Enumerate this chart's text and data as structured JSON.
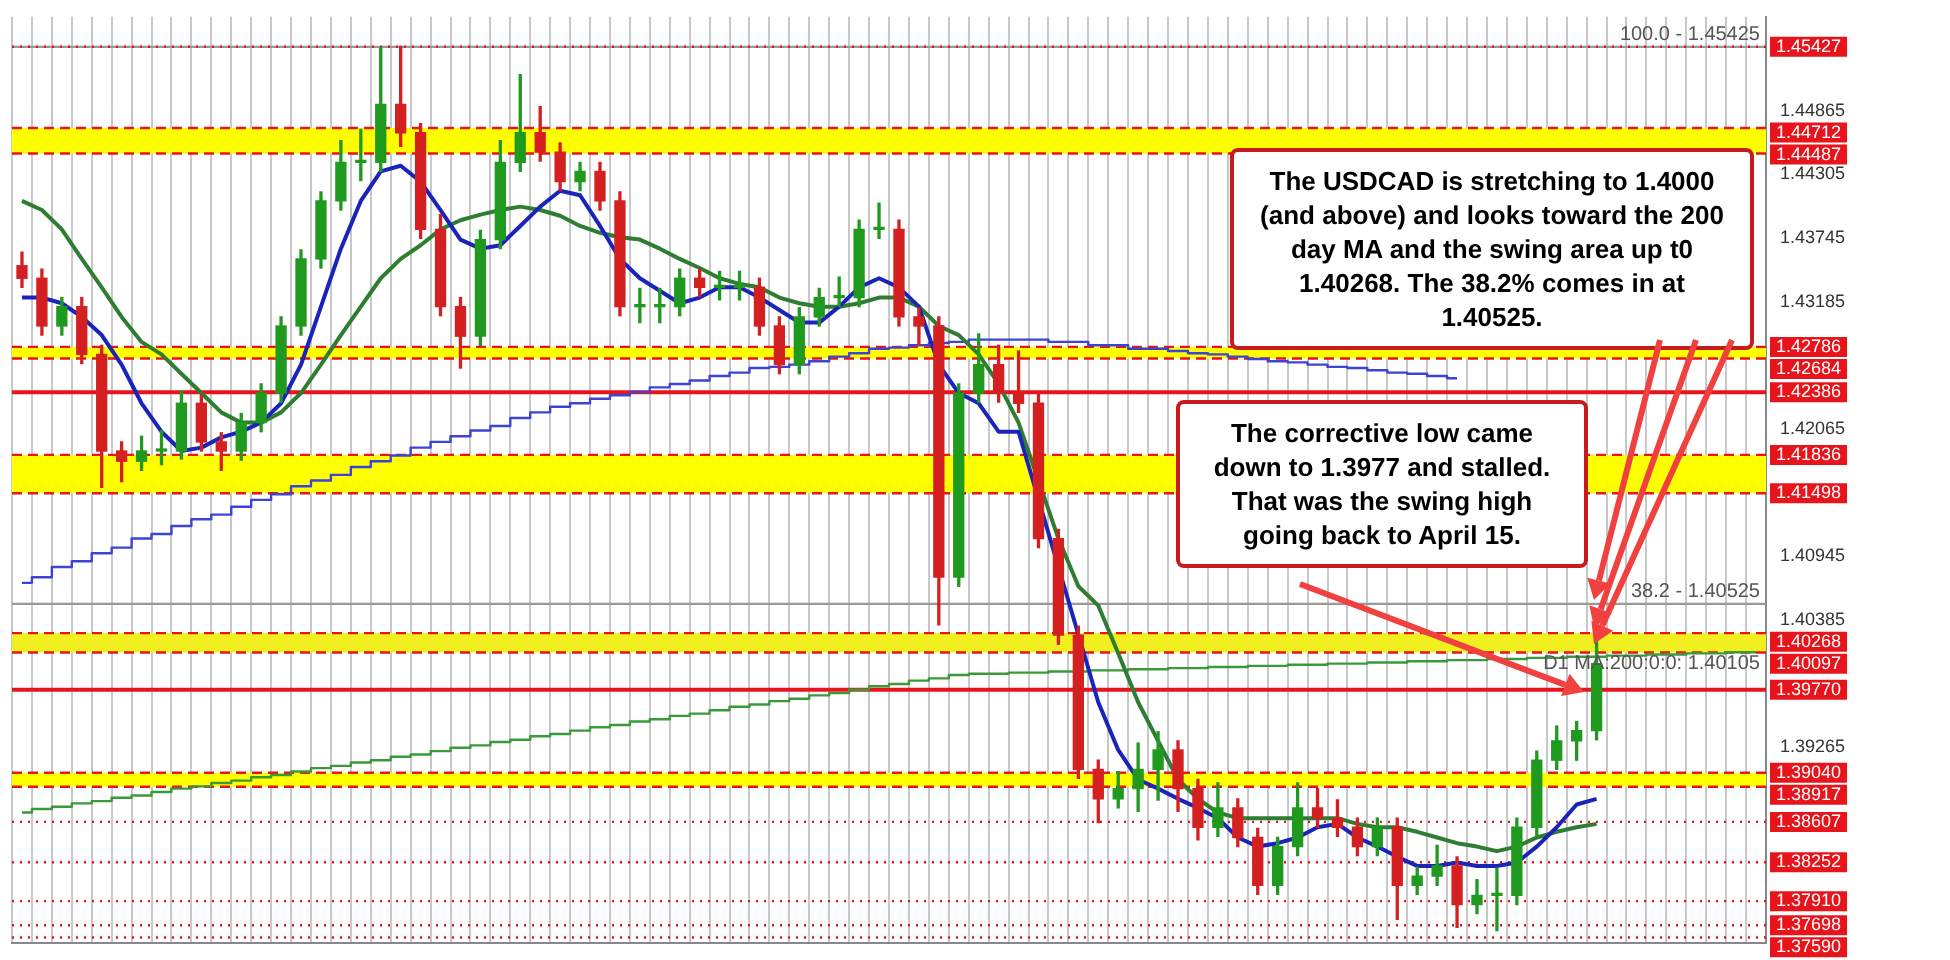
{
  "chart_data": {
    "type": "candlestick",
    "categories": [
      null,
      null,
      null,
      null,
      null,
      null,
      null,
      null,
      null,
      null,
      null,
      null,
      null,
      null,
      null,
      null,
      null,
      null,
      null,
      null,
      null,
      null,
      null,
      null,
      null,
      null,
      null,
      null,
      null,
      null,
      null,
      null,
      null,
      null,
      null,
      null,
      null,
      null,
      null,
      null,
      null,
      null,
      null,
      null,
      null,
      null,
      null,
      null,
      null,
      null,
      null,
      null,
      null,
      null,
      null,
      null,
      null,
      null,
      null,
      null,
      null,
      null,
      null,
      null,
      null,
      null,
      null,
      null,
      null,
      null,
      null,
      null,
      null,
      null,
      null,
      null,
      null,
      null,
      null,
      null,
      null,
      null,
      null,
      null,
      null,
      null,
      null,
      null
    ],
    "ohlc": [
      [
        1.435,
        1.4362,
        1.4331,
        1.4339
      ],
      [
        1.4339,
        1.4347,
        1.4289,
        1.4297
      ],
      [
        1.4297,
        1.4322,
        1.4289,
        1.4314
      ],
      [
        1.4314,
        1.4322,
        1.4264,
        1.4272
      ],
      [
        1.4272,
        1.428,
        1.4155,
        1.4187
      ],
      [
        1.4187,
        1.4195,
        1.416,
        1.4178
      ],
      [
        1.4178,
        1.42,
        1.417,
        1.4187
      ],
      [
        1.4187,
        1.4205,
        1.4175,
        1.4187
      ],
      [
        1.4187,
        1.424,
        1.418,
        1.4229
      ],
      [
        1.4229,
        1.4237,
        1.4187,
        1.4195
      ],
      [
        1.4195,
        1.4203,
        1.417,
        1.4187
      ],
      [
        1.4187,
        1.422,
        1.4179,
        1.4212
      ],
      [
        1.4212,
        1.4246,
        1.4204,
        1.4238
      ],
      [
        1.4238,
        1.4305,
        1.423,
        1.4297
      ],
      [
        1.4297,
        1.4364,
        1.4289,
        1.4356
      ],
      [
        1.4356,
        1.4415,
        1.4348,
        1.4407
      ],
      [
        1.4407,
        1.446,
        1.4399,
        1.4441
      ],
      [
        1.4441,
        1.447,
        1.4425,
        1.4441
      ],
      [
        1.4441,
        1.4542,
        1.4433,
        1.4492
      ],
      [
        1.4492,
        1.4543,
        1.4455,
        1.4467
      ],
      [
        1.4467,
        1.4475,
        1.4374,
        1.4382
      ],
      [
        1.4382,
        1.4395,
        1.4306,
        1.4314
      ],
      [
        1.4314,
        1.4322,
        1.426,
        1.4288
      ],
      [
        1.4288,
        1.4381,
        1.428,
        1.4373
      ],
      [
        1.4373,
        1.446,
        1.4365,
        1.4441
      ],
      [
        1.4441,
        1.4518,
        1.4433,
        1.4467
      ],
      [
        1.4467,
        1.449,
        1.4442,
        1.445
      ],
      [
        1.445,
        1.4458,
        1.4416,
        1.4424
      ],
      [
        1.4424,
        1.4441,
        1.4416,
        1.4433
      ],
      [
        1.4433,
        1.4441,
        1.4399,
        1.4407
      ],
      [
        1.4407,
        1.4415,
        1.4306,
        1.4314
      ],
      [
        1.4314,
        1.433,
        1.43,
        1.4314
      ],
      [
        1.4314,
        1.433,
        1.43,
        1.4314
      ],
      [
        1.4314,
        1.4347,
        1.4306,
        1.4339
      ],
      [
        1.4339,
        1.4347,
        1.4323,
        1.4331
      ],
      [
        1.4331,
        1.4345,
        1.432,
        1.4331
      ],
      [
        1.4331,
        1.4345,
        1.432,
        1.4331
      ],
      [
        1.4331,
        1.4339,
        1.4289,
        1.4297
      ],
      [
        1.4297,
        1.4305,
        1.4255,
        1.4263
      ],
      [
        1.4263,
        1.4313,
        1.4255,
        1.4305
      ],
      [
        1.4305,
        1.433,
        1.4297,
        1.4322
      ],
      [
        1.4322,
        1.434,
        1.4314,
        1.4322
      ],
      [
        1.4322,
        1.439,
        1.4314,
        1.4382
      ],
      [
        1.4382,
        1.4405,
        1.4374,
        1.4382
      ],
      [
        1.4382,
        1.439,
        1.4297,
        1.4305
      ],
      [
        1.4305,
        1.4313,
        1.428,
        1.4297
      ],
      [
        1.4297,
        1.4305,
        1.4034,
        1.4076
      ],
      [
        1.4076,
        1.4246,
        1.4068,
        1.4238
      ],
      [
        1.4238,
        1.429,
        1.423,
        1.4263
      ],
      [
        1.4263,
        1.428,
        1.423,
        1.4238
      ],
      [
        1.4238,
        1.4275,
        1.4221,
        1.4229
      ],
      [
        1.4229,
        1.4237,
        1.4102,
        1.411
      ],
      [
        1.411,
        1.4118,
        1.4017,
        1.4025
      ],
      [
        1.4025,
        1.4033,
        1.3899,
        1.3907
      ],
      [
        1.3907,
        1.3915,
        1.386,
        1.3881
      ],
      [
        1.3881,
        1.3905,
        1.3873,
        1.389
      ],
      [
        1.389,
        1.393,
        1.387,
        1.3907
      ],
      [
        1.3907,
        1.394,
        1.388,
        1.3924
      ],
      [
        1.3924,
        1.3932,
        1.387,
        1.389
      ],
      [
        1.389,
        1.3898,
        1.3845,
        1.3856
      ],
      [
        1.3856,
        1.3895,
        1.3848,
        1.3873
      ],
      [
        1.3873,
        1.3881,
        1.3839,
        1.3847
      ],
      [
        1.3847,
        1.3855,
        1.3797,
        1.3805
      ],
      [
        1.3805,
        1.3847,
        1.3797,
        1.3839
      ],
      [
        1.3839,
        1.3895,
        1.3831,
        1.3873
      ],
      [
        1.3873,
        1.389,
        1.3856,
        1.3864
      ],
      [
        1.3864,
        1.388,
        1.3848,
        1.3856
      ],
      [
        1.3856,
        1.3864,
        1.3831,
        1.3839
      ],
      [
        1.3839,
        1.3864,
        1.3831,
        1.3856
      ],
      [
        1.3856,
        1.3864,
        1.3775,
        1.3805
      ],
      [
        1.3805,
        1.3821,
        1.3797,
        1.3813
      ],
      [
        1.3813,
        1.384,
        1.3805,
        1.3822
      ],
      [
        1.3822,
        1.383,
        1.3768,
        1.3788
      ],
      [
        1.3788,
        1.381,
        1.378,
        1.3796
      ],
      [
        1.3796,
        1.382,
        1.3765,
        1.3796
      ],
      [
        1.3796,
        1.3864,
        1.3788,
        1.3856
      ],
      [
        1.3856,
        1.3923,
        1.3848,
        1.3915
      ],
      [
        1.3915,
        1.3945,
        1.3907,
        1.3932
      ],
      [
        1.3932,
        1.3949,
        1.3915,
        1.3941
      ],
      [
        1.3941,
        1.402,
        1.3933,
        1.4
      ],
      null,
      null,
      null,
      null,
      null,
      null,
      null,
      null
    ],
    "series": [
      {
        "type": "line",
        "color": "#1a24b8",
        "values": [
          1.4322,
          1.4322,
          1.4317,
          1.4305,
          1.4289,
          1.4263,
          1.4229,
          1.4204,
          1.4187,
          1.419,
          1.4199,
          1.4204,
          1.4212,
          1.4229,
          1.4263,
          1.4314,
          1.4365,
          1.4407,
          1.4433,
          1.4438,
          1.4424,
          1.4399,
          1.4373,
          1.4365,
          1.4368,
          1.4385,
          1.4402,
          1.4416,
          1.4412,
          1.4385,
          1.4356,
          1.4339,
          1.4328,
          1.4317,
          1.4322,
          1.4331,
          1.4331,
          1.4322,
          1.4311,
          1.43,
          1.43,
          1.4314,
          1.4331,
          1.4339,
          1.4331,
          1.4314,
          1.4263,
          1.4238,
          1.4229,
          1.4204,
          1.4204,
          null,
          null,
          null,
          1.3966,
          1.3924,
          1.3898,
          1.389,
          1.3881,
          1.3873,
          1.3864,
          1.3847,
          1.3839,
          1.3842,
          1.3847,
          1.3856,
          1.3859,
          1.3847,
          1.3839,
          1.383,
          1.3822,
          1.3822,
          1.3825,
          1.3822,
          1.3822,
          1.3825,
          1.3839,
          1.3856,
          1.3876,
          1.3881,
          null,
          null,
          null,
          null,
          null,
          null,
          null,
          null
        ]
      },
      {
        "type": "line",
        "color": "#2e7d32",
        "values": [
          1.4407,
          1.4399,
          1.4382,
          1.4356,
          1.4331,
          1.4305,
          1.4283,
          1.4272,
          1.4255,
          1.4238,
          1.4221,
          1.4212,
          1.4212,
          1.4221,
          1.4238,
          1.4263,
          1.4289,
          1.4314,
          1.4339,
          1.4356,
          1.4368,
          1.4382,
          1.439,
          1.4395,
          1.4399,
          1.4402,
          1.4399,
          1.4394,
          1.4385,
          1.4379,
          1.4375,
          1.4373,
          1.4365,
          1.4356,
          1.4348,
          1.4339,
          1.4334,
          1.4331,
          1.4322,
          1.4317,
          1.4314,
          1.4314,
          1.4317,
          1.4322,
          1.4322,
          1.4314,
          1.4297,
          1.4289,
          1.4272,
          1.4246,
          1.4212,
          null,
          1.411,
          1.4068,
          1.4051,
          1.4009,
          1.3966,
          1.3932,
          1.3898,
          1.3881,
          1.3869,
          1.3864,
          1.3864,
          1.3864,
          1.3864,
          1.3864,
          1.3864,
          1.3859,
          1.3856,
          1.3856,
          1.3852,
          1.3847,
          1.3842,
          1.3839,
          1.3835,
          1.3839,
          1.3847,
          1.3852,
          1.3856,
          1.3859,
          null,
          null,
          null,
          null,
          null,
          null,
          null,
          null
        ]
      },
      {
        "type": "step",
        "color": "#3b44d6",
        "values": [
          1.4071,
          1.4076,
          1.4085,
          1.409,
          1.4097,
          1.4102,
          1.411,
          1.4114,
          1.4121,
          1.4127,
          1.4131,
          1.4138,
          1.4144,
          1.4149,
          1.4156,
          1.4161,
          1.4166,
          1.4173,
          1.4178,
          1.4183,
          1.419,
          1.4195,
          1.42,
          1.4205,
          1.4209,
          1.4216,
          1.4221,
          1.4226,
          1.4229,
          1.4233,
          1.4236,
          1.4239,
          1.4243,
          1.4246,
          1.4249,
          1.4253,
          1.4256,
          1.426,
          1.4261,
          1.4263,
          1.4266,
          1.427,
          1.4273,
          1.4277,
          1.4278,
          1.428,
          1.4282,
          1.4283,
          1.4285,
          1.4285,
          1.4285,
          1.4285,
          1.4283,
          1.4283,
          1.428,
          1.428,
          1.4277,
          1.4277,
          1.4275,
          1.4273,
          1.4272,
          1.427,
          1.4268,
          1.4266,
          1.4265,
          1.4263,
          1.4261,
          1.426,
          1.4258,
          1.4256,
          1.4255,
          1.4253,
          1.4251,
          null,
          null,
          null,
          null,
          null,
          null,
          null,
          null,
          null,
          null,
          null,
          null,
          null,
          null,
          null
        ]
      },
      {
        "type": "step",
        "color": "#3a9a3a",
        "values": [
          1.3869,
          1.3872,
          1.3874,
          1.3877,
          1.3879,
          1.3882,
          1.3884,
          1.3887,
          1.389,
          1.3892,
          1.3895,
          1.3897,
          1.39,
          1.3902,
          1.3905,
          1.3908,
          1.391,
          1.3913,
          1.3915,
          1.3918,
          1.392,
          1.3923,
          1.3926,
          1.3928,
          1.3931,
          1.3933,
          1.3936,
          1.3938,
          1.3941,
          1.3944,
          1.3946,
          1.3949,
          1.3951,
          1.3954,
          1.3956,
          1.3959,
          1.3962,
          1.3964,
          1.3967,
          1.3969,
          1.3972,
          1.3974,
          1.3977,
          1.398,
          1.3982,
          1.3985,
          1.3987,
          1.399,
          1.3991,
          1.3991,
          1.3992,
          1.3992,
          1.3993,
          1.3993,
          1.3994,
          1.3994,
          1.3995,
          1.3995,
          1.3996,
          1.3996,
          1.3997,
          1.3997,
          1.3998,
          1.3998,
          1.3999,
          1.3999,
          1.4,
          1.4,
          1.4001,
          1.4001,
          1.4002,
          1.4002,
          1.4003,
          1.4003,
          1.4004,
          1.4004,
          1.4005,
          1.4005,
          1.4006,
          1.4006,
          1.4007,
          1.4007,
          1.4008,
          1.4008,
          1.4009,
          1.4009,
          1.401,
          1.401
        ]
      }
    ],
    "marker": "none",
    "ylim": [
      1.3754,
      1.4569
    ],
    "yticks": [
      1.44865,
      1.44305,
      1.43745,
      1.43185,
      1.42065,
      1.40945,
      1.40385,
      1.39265
    ],
    "tick_labels": "y",
    "grid": "x",
    "bands": [
      {
        "axis": "y",
        "from": 1.44487,
        "to": 1.44712,
        "color": "#ffff00"
      },
      {
        "axis": "y",
        "from": 1.42684,
        "to": 1.42786,
        "color": "#ffff00"
      },
      {
        "axis": "y",
        "from": 1.41498,
        "to": 1.41836,
        "color": "#ffff00"
      },
      {
        "axis": "y",
        "from": 1.40097,
        "to": 1.40268,
        "color": "#f0f020"
      },
      {
        "axis": "y",
        "from": 1.38917,
        "to": 1.3904,
        "color": "#ffff00"
      }
    ],
    "ref_lines": [
      {
        "axis": "y",
        "value": 1.45425,
        "label": null,
        "color": "#999999",
        "line_style": "solid"
      },
      {
        "axis": "y",
        "value": 1.40525,
        "label": null,
        "color": "#999999",
        "line_style": "solid"
      },
      {
        "axis": "y",
        "value": 1.45427,
        "label": "1.45427",
        "color": "#e8141b",
        "line_style": "dotted"
      },
      {
        "axis": "y",
        "value": 1.44712,
        "label": "1.44712",
        "color": "#e8141b",
        "line_style": "dashed"
      },
      {
        "axis": "y",
        "value": 1.44487,
        "label": "1.44487",
        "color": "#e8141b",
        "line_style": "dashed"
      },
      {
        "axis": "y",
        "value": 1.42786,
        "label": "1.42786",
        "color": "#e8141b",
        "line_style": "dashed"
      },
      {
        "axis": "y",
        "value": 1.42684,
        "label": "1.42684",
        "color": "#e8141b",
        "line_style": "dashed"
      },
      {
        "axis": "y",
        "value": 1.42386,
        "label": "1.42386",
        "color": "#e8141b",
        "line_style": "solid"
      },
      {
        "axis": "y",
        "value": 1.41836,
        "label": "1.41836",
        "color": "#e8141b",
        "line_style": "dashed"
      },
      {
        "axis": "y",
        "value": 1.41498,
        "label": "1.41498",
        "color": "#e8141b",
        "line_style": "dashed"
      },
      {
        "axis": "y",
        "value": 1.40268,
        "label": "1.40268",
        "color": "#e8141b",
        "line_style": "dashed"
      },
      {
        "axis": "y",
        "value": 1.40097,
        "label": "1.40097",
        "color": "#e8141b",
        "line_style": "dashed"
      },
      {
        "axis": "y",
        "value": 1.3977,
        "label": "1.39770",
        "color": "#e8141b",
        "line_style": "solid"
      },
      {
        "axis": "y",
        "value": 1.3904,
        "label": "1.39040",
        "color": "#e8141b",
        "line_style": "dashed"
      },
      {
        "axis": "y",
        "value": 1.38917,
        "label": "1.38917",
        "color": "#e8141b",
        "line_style": "dashed"
      },
      {
        "axis": "y",
        "value": 1.38607,
        "label": "1.38607",
        "color": "#e8141b",
        "line_style": "dotted"
      },
      {
        "axis": "y",
        "value": 1.38252,
        "label": "1.38252",
        "color": "#e8141b",
        "line_style": "dotted"
      },
      {
        "axis": "y",
        "value": 1.3791,
        "label": "1.37910",
        "color": "#e8141b",
        "line_style": "dotted"
      },
      {
        "axis": "y",
        "value": 1.37698,
        "label": "1.37698",
        "color": "#e8141b",
        "line_style": "dotted"
      },
      {
        "axis": "y",
        "value": 1.3759,
        "label": "1.37590",
        "color": "#e8141b",
        "line_style": "dotted"
      }
    ],
    "annotations": [
      {
        "text": "100.0 - 1.45425",
        "y": 1.45425
      },
      {
        "text": "38.2 - 1.40525",
        "y": 1.40525
      },
      {
        "text": "D1 MA:200:0:0: 1.40105",
        "y": 1.40105
      },
      "The USDCAD is stretching to 1.4000 (and above) and looks toward the 200 day MA and the swing area up t0 1.40268. The 38.2% comes in at 1.40525.",
      "The corrective low came down to 1.3977 and stalled. That was the swing high going back to April 15."
    ]
  }
}
